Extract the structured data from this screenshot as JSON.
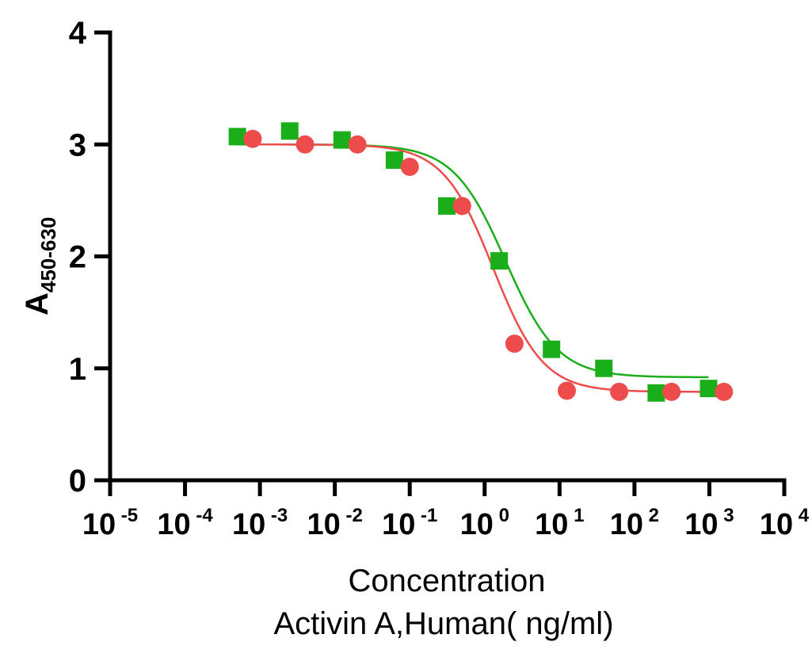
{
  "chart_data": {
    "type": "scatter",
    "title": "",
    "ylabel": "A",
    "ylabel_sub": "450-630",
    "xlabel_line1": "Concentration",
    "xlabel_line2": "Activin A,Human( ng/ml)",
    "x_scale": "log10",
    "xlim_exp": [
      -5,
      4
    ],
    "ylim": [
      0,
      4
    ],
    "y_ticks": [
      0,
      1,
      2,
      3,
      4
    ],
    "x_tick_labels": [
      {
        "exp": -5,
        "base": "10",
        "power": "-5"
      },
      {
        "exp": -4,
        "base": "10",
        "power": "-4"
      },
      {
        "exp": -3,
        "base": "10",
        "power": "-3"
      },
      {
        "exp": -2,
        "base": "10",
        "power": "-2"
      },
      {
        "exp": -1,
        "base": "10",
        "power": "-1"
      },
      {
        "exp": 0,
        "base": "10",
        "power": "0"
      },
      {
        "exp": 1,
        "base": "10",
        "power": "1"
      },
      {
        "exp": 2,
        "base": "10",
        "power": "2"
      },
      {
        "exp": 3,
        "base": "10",
        "power": "3"
      },
      {
        "exp": 4,
        "base": "10",
        "power": "4"
      }
    ],
    "series": [
      {
        "name": "green",
        "color": "#1aaf1a",
        "marker": "square",
        "x": [
          0.0005,
          0.0025,
          0.0125,
          0.0625,
          0.3125,
          1.5625,
          7.8125,
          39.0625,
          195.3125,
          976.5625
        ],
        "y": [
          3.07,
          3.12,
          3.04,
          2.86,
          2.45,
          1.96,
          1.17,
          1.0,
          0.78,
          0.82
        ],
        "fit": {
          "top": 3.0,
          "bottom": 0.92,
          "ec50": 1.9,
          "hill": 1.25,
          "x_range": [
            0.0005,
            976.5625
          ]
        }
      },
      {
        "name": "red",
        "color": "#ee4c4c",
        "marker": "circle",
        "x": [
          0.0008,
          0.004,
          0.02,
          0.1,
          0.5,
          2.5,
          12.5,
          62.5,
          312.5,
          1562.5
        ],
        "y": [
          3.05,
          3.0,
          3.0,
          2.8,
          2.45,
          1.22,
          0.8,
          0.79,
          0.79,
          0.79
        ],
        "fit": {
          "top": 3.0,
          "bottom": 0.79,
          "ec50": 1.3,
          "hill": 1.3,
          "x_range": [
            0.0008,
            1562.5
          ]
        }
      }
    ]
  }
}
